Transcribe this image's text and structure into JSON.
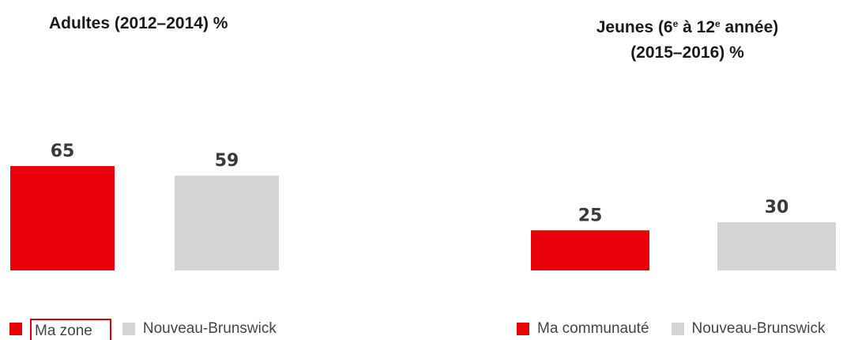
{
  "chart_data": [
    {
      "type": "bar",
      "title_text": "Adultes (2012–2014) %",
      "categories": [
        "Ma zone",
        "Nouveau-Brunswick"
      ],
      "values": [
        65,
        59
      ],
      "ylim": [
        0,
        100
      ],
      "legend": [
        "Ma zone",
        "Nouveau-Brunswick"
      ],
      "colors": [
        "#e8000b",
        "#d4d4d4"
      ]
    },
    {
      "type": "bar",
      "title_line1": "Jeunes (6",
      "title_sup1": "e",
      "title_mid": " à 12",
      "title_sup2": "e",
      "title_end": " année)",
      "title_line2": "(2015–2016) %",
      "categories": [
        "Ma communauté",
        "Nouveau-Brunswick"
      ],
      "values": [
        25,
        30
      ],
      "ylim": [
        0,
        100
      ],
      "legend": [
        "Ma communauté",
        "Nouveau-Brunswick"
      ],
      "colors": [
        "#e8000b",
        "#d4d4d4"
      ]
    }
  ]
}
